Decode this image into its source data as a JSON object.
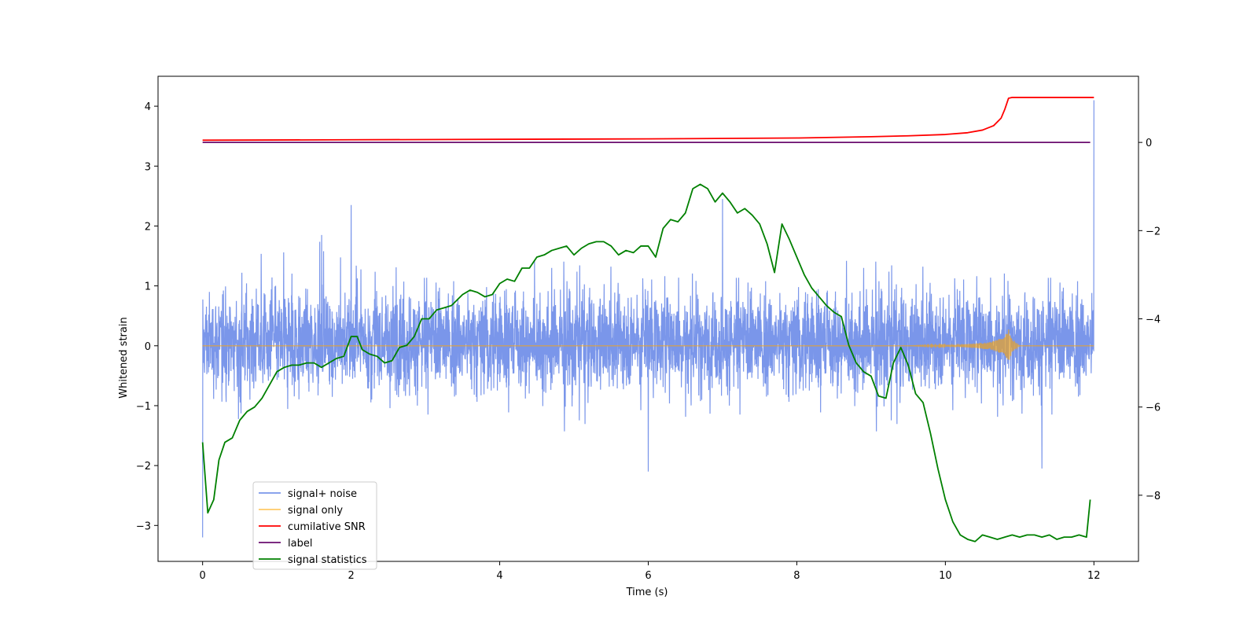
{
  "chart_data": {
    "type": "line",
    "xlabel": "Time (s)",
    "ylabel": "Whitened strain",
    "xlim": [
      -0.6,
      12.6
    ],
    "ylim": [
      -3.6,
      4.5
    ],
    "y2lim": [
      -9.5,
      1.5
    ],
    "xticks": [
      "0",
      "2",
      "4",
      "6",
      "8",
      "10",
      "12"
    ],
    "xtick_values": [
      0,
      2,
      4,
      6,
      8,
      10,
      12
    ],
    "yticks": [
      "−3",
      "−2",
      "−1",
      "0",
      "1",
      "2",
      "3",
      "4"
    ],
    "ytick_values": [
      -3,
      -2,
      -1,
      0,
      1,
      2,
      3,
      4
    ],
    "y2ticks": [
      "−8",
      "−6",
      "−4",
      "−2",
      "0"
    ],
    "y2tick_values": [
      -8,
      -6,
      -4,
      -2,
      0
    ],
    "legend_position": "lower-left",
    "grid": false,
    "series": [
      {
        "name": "signal+ noise",
        "axis": "left",
        "color": "#4169e1",
        "noise_summary": {
          "t_range": [
            0,
            12
          ],
          "typical_amplitude": [
            -1.0,
            1.2
          ],
          "spike_extremes": [
            {
              "t": 0.0,
              "y": -3.2
            },
            {
              "t": 2.0,
              "y": 2.35
            },
            {
              "t": 6.0,
              "y": -2.1
            },
            {
              "t": 7.0,
              "y": 2.45
            },
            {
              "t": 11.3,
              "y": -2.05
            },
            {
              "t": 12.0,
              "y": 4.1
            }
          ]
        }
      },
      {
        "name": "signal only",
        "axis": "left",
        "color": "#ffa500",
        "envelope": {
          "t": [
            0,
            9.5,
            10.2,
            10.6,
            10.8,
            10.85,
            10.9,
            11.0,
            12.0
          ],
          "amp": [
            0.0,
            0.0,
            0.02,
            0.06,
            0.15,
            0.28,
            0.1,
            0.0,
            0.0
          ]
        }
      },
      {
        "name": "cumilative SNR",
        "axis": "right",
        "color": "#ff0000",
        "t": [
          0,
          2,
          4,
          6,
          8,
          9,
          9.5,
          10,
          10.3,
          10.5,
          10.65,
          10.75,
          10.8,
          10.85,
          10.9,
          11.0,
          12.0
        ],
        "y": [
          0.05,
          0.06,
          0.07,
          0.08,
          0.1,
          0.13,
          0.15,
          0.18,
          0.22,
          0.28,
          0.38,
          0.55,
          0.75,
          1.0,
          1.02,
          1.02,
          1.02
        ]
      },
      {
        "name": "label",
        "axis": "right",
        "color": "#6a0d6f",
        "t": [
          0,
          11.95
        ],
        "y": [
          0,
          0
        ]
      },
      {
        "name": "signal statistics",
        "axis": "right",
        "color": "#008000",
        "t": [
          0.0,
          0.07,
          0.15,
          0.22,
          0.3,
          0.4,
          0.5,
          0.6,
          0.7,
          0.8,
          0.9,
          1.0,
          1.1,
          1.2,
          1.3,
          1.4,
          1.5,
          1.6,
          1.7,
          1.8,
          1.9,
          2.0,
          2.08,
          2.15,
          2.25,
          2.35,
          2.45,
          2.55,
          2.65,
          2.75,
          2.85,
          2.95,
          3.05,
          3.15,
          3.25,
          3.35,
          3.5,
          3.6,
          3.7,
          3.8,
          3.9,
          4.0,
          4.1,
          4.2,
          4.3,
          4.4,
          4.5,
          4.6,
          4.7,
          4.8,
          4.9,
          5.0,
          5.1,
          5.2,
          5.3,
          5.4,
          5.5,
          5.6,
          5.7,
          5.8,
          5.9,
          6.0,
          6.1,
          6.2,
          6.3,
          6.4,
          6.5,
          6.6,
          6.7,
          6.8,
          6.9,
          7.0,
          7.1,
          7.2,
          7.3,
          7.4,
          7.5,
          7.6,
          7.7,
          7.8,
          7.9,
          8.0,
          8.1,
          8.2,
          8.3,
          8.4,
          8.5,
          8.6,
          8.7,
          8.8,
          8.9,
          9.0,
          9.1,
          9.2,
          9.3,
          9.4,
          9.5,
          9.6,
          9.7,
          9.8,
          9.9,
          10.0,
          10.1,
          10.2,
          10.3,
          10.4,
          10.5,
          10.6,
          10.7,
          10.8,
          10.9,
          11.0,
          11.1,
          11.2,
          11.3,
          11.4,
          11.5,
          11.6,
          11.7,
          11.8,
          11.9,
          11.95
        ],
        "y": [
          -6.8,
          -8.4,
          -8.1,
          -7.2,
          -6.8,
          -6.7,
          -6.3,
          -6.1,
          -6.0,
          -5.8,
          -5.5,
          -5.2,
          -5.1,
          -5.05,
          -5.05,
          -5.0,
          -5.0,
          -5.1,
          -5.0,
          -4.9,
          -4.85,
          -4.4,
          -4.4,
          -4.7,
          -4.8,
          -4.85,
          -5.0,
          -4.95,
          -4.65,
          -4.6,
          -4.4,
          -4.0,
          -4.0,
          -3.8,
          -3.75,
          -3.7,
          -3.45,
          -3.35,
          -3.4,
          -3.5,
          -3.45,
          -3.2,
          -3.1,
          -3.15,
          -2.85,
          -2.85,
          -2.6,
          -2.55,
          -2.45,
          -2.4,
          -2.35,
          -2.55,
          -2.4,
          -2.3,
          -2.25,
          -2.25,
          -2.35,
          -2.55,
          -2.45,
          -2.5,
          -2.35,
          -2.35,
          -2.6,
          -1.95,
          -1.75,
          -1.8,
          -1.6,
          -1.05,
          -0.95,
          -1.05,
          -1.35,
          -1.15,
          -1.35,
          -1.6,
          -1.5,
          -1.65,
          -1.85,
          -2.3,
          -2.95,
          -1.85,
          -2.2,
          -2.6,
          -3.0,
          -3.3,
          -3.5,
          -3.7,
          -3.85,
          -3.95,
          -4.6,
          -5.0,
          -5.2,
          -5.3,
          -5.75,
          -5.8,
          -5.0,
          -4.65,
          -5.05,
          -5.7,
          -5.9,
          -6.6,
          -7.4,
          -8.1,
          -8.6,
          -8.9,
          -9.0,
          -9.05,
          -8.9,
          -8.95,
          -9.0,
          -8.95,
          -8.9,
          -8.95,
          -8.9,
          -8.9,
          -8.95,
          -8.9,
          -9.0,
          -8.95,
          -8.95,
          -8.9,
          -8.95,
          -8.1
        ]
      }
    ]
  }
}
